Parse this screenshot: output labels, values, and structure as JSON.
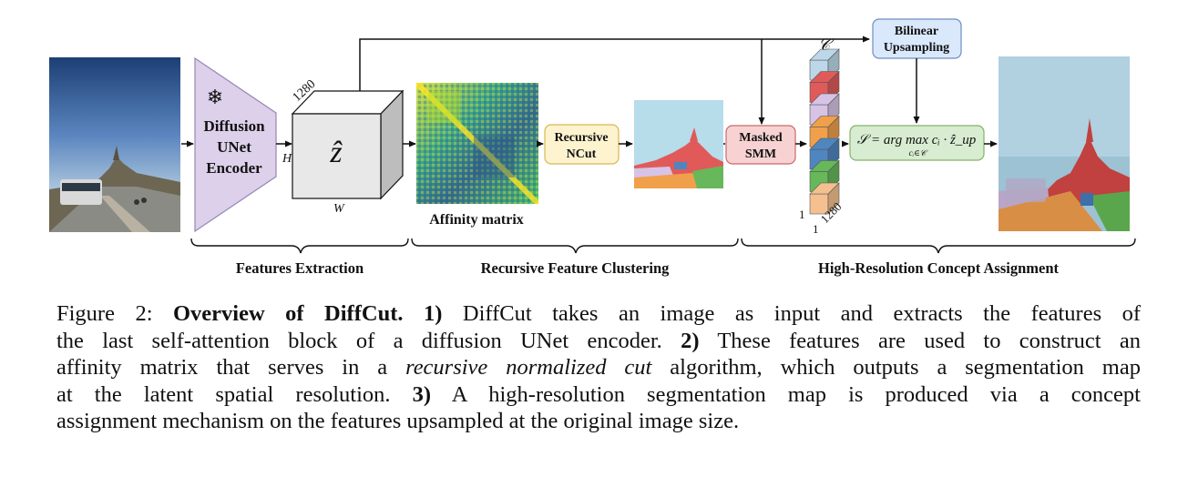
{
  "figure": {
    "encoder_label": [
      "Diffusion",
      "UNet",
      "Encoder"
    ],
    "snowflake": "❄",
    "latent_symbol": "ẑ",
    "cube_dim_depth": "1280",
    "cube_dim_h": "H",
    "cube_dim_w": "W",
    "affinity_label": "Affinity matrix",
    "ncut_label": [
      "Recursive",
      "NCut"
    ],
    "smm_label": [
      "Masked",
      "SMM"
    ],
    "upsample_label": [
      "Bilinear",
      "Upsampling"
    ],
    "concepts_symbol": "𝒞",
    "stack_dims": [
      "1",
      "1",
      "1280"
    ],
    "assign_formula": "𝒮 = arg max cᵢ · ẑ_up",
    "assign_sub": "cᵢ∈𝒞",
    "sections": [
      "Features Extraction",
      "Recursive Feature Clustering",
      "High-Resolution Concept Assignment"
    ],
    "colors": {
      "encoder": "#dcd0ea",
      "ncut": "#fdf3cf",
      "smm": "#f8d2d2",
      "upsample": "#dae8fc",
      "assign": "#d7ecd1",
      "stack": [
        "#bcd8e8",
        "#e05a5a",
        "#d7c3e6",
        "#f0a04b",
        "#4f86c0",
        "#66b85a",
        "#f5c08f"
      ]
    }
  },
  "caption": {
    "lines": [
      [
        "Figure 2: ",
        "Overview of DiffCut.",
        " ",
        "1)",
        " DiffCut takes an image as input and extracts the features of"
      ],
      [
        "the last self-attention block of a diffusion UNet encoder. ",
        "2)",
        " These features are used to construct an"
      ],
      [
        "affinity matrix that serves in a ",
        "recursive normalized cut",
        " algorithm, which outputs a segmentation map"
      ],
      [
        "at the latent spatial resolution. ",
        "3)",
        " A high-resolution segmentation map is produced via a concept"
      ],
      [
        "assignment mechanism on the features upsampled at the original image size."
      ]
    ]
  }
}
